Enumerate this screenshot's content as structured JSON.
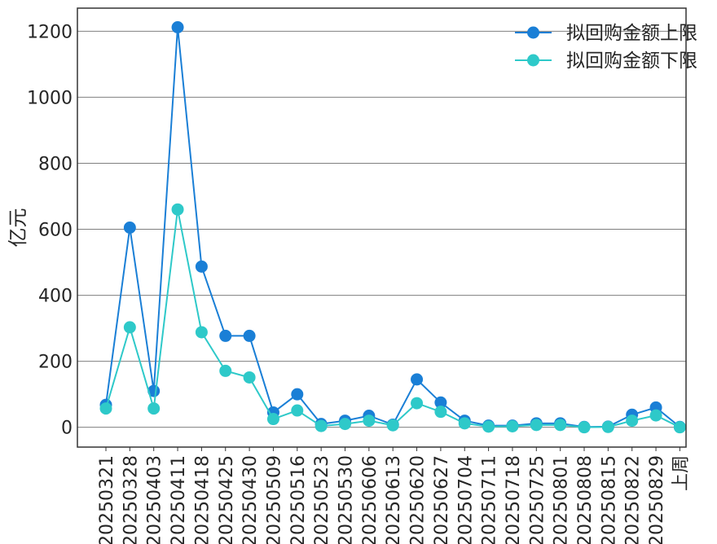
{
  "chart_data": {
    "type": "line",
    "title": "",
    "xlabel": "",
    "ylabel": "亿元",
    "ylim": [
      -60,
      1270
    ],
    "yticks": [
      0,
      200,
      400,
      600,
      800,
      1000,
      1200
    ],
    "grid": "horizontal",
    "legend_position": "top-right",
    "categories": [
      "20250321",
      "20250328",
      "20250403",
      "20250411",
      "20250418",
      "20250425",
      "20250430",
      "20250509",
      "20250516",
      "20250523",
      "20250530",
      "20250606",
      "20250613",
      "20250620",
      "20250627",
      "20250704",
      "20250711",
      "20250718",
      "20250725",
      "20250801",
      "20250808",
      "20250815",
      "20250822",
      "20250829",
      "上周"
    ],
    "series": [
      {
        "name": "拟回购金额上限",
        "color": "#1a7fd6",
        "values": [
          68,
          605,
          110,
          1212,
          487,
          277,
          277,
          45,
          100,
          10,
          20,
          35,
          8,
          145,
          75,
          20,
          5,
          5,
          12,
          12,
          1,
          2,
          38,
          60,
          1
        ]
      },
      {
        "name": "拟回购金额下限",
        "color": "#2ec9c9",
        "values": [
          57,
          303,
          57,
          660,
          288,
          171,
          151,
          25,
          51,
          4,
          10,
          20,
          6,
          73,
          47,
          12,
          2,
          3,
          7,
          7,
          0,
          1,
          20,
          36,
          0
        ]
      }
    ]
  }
}
